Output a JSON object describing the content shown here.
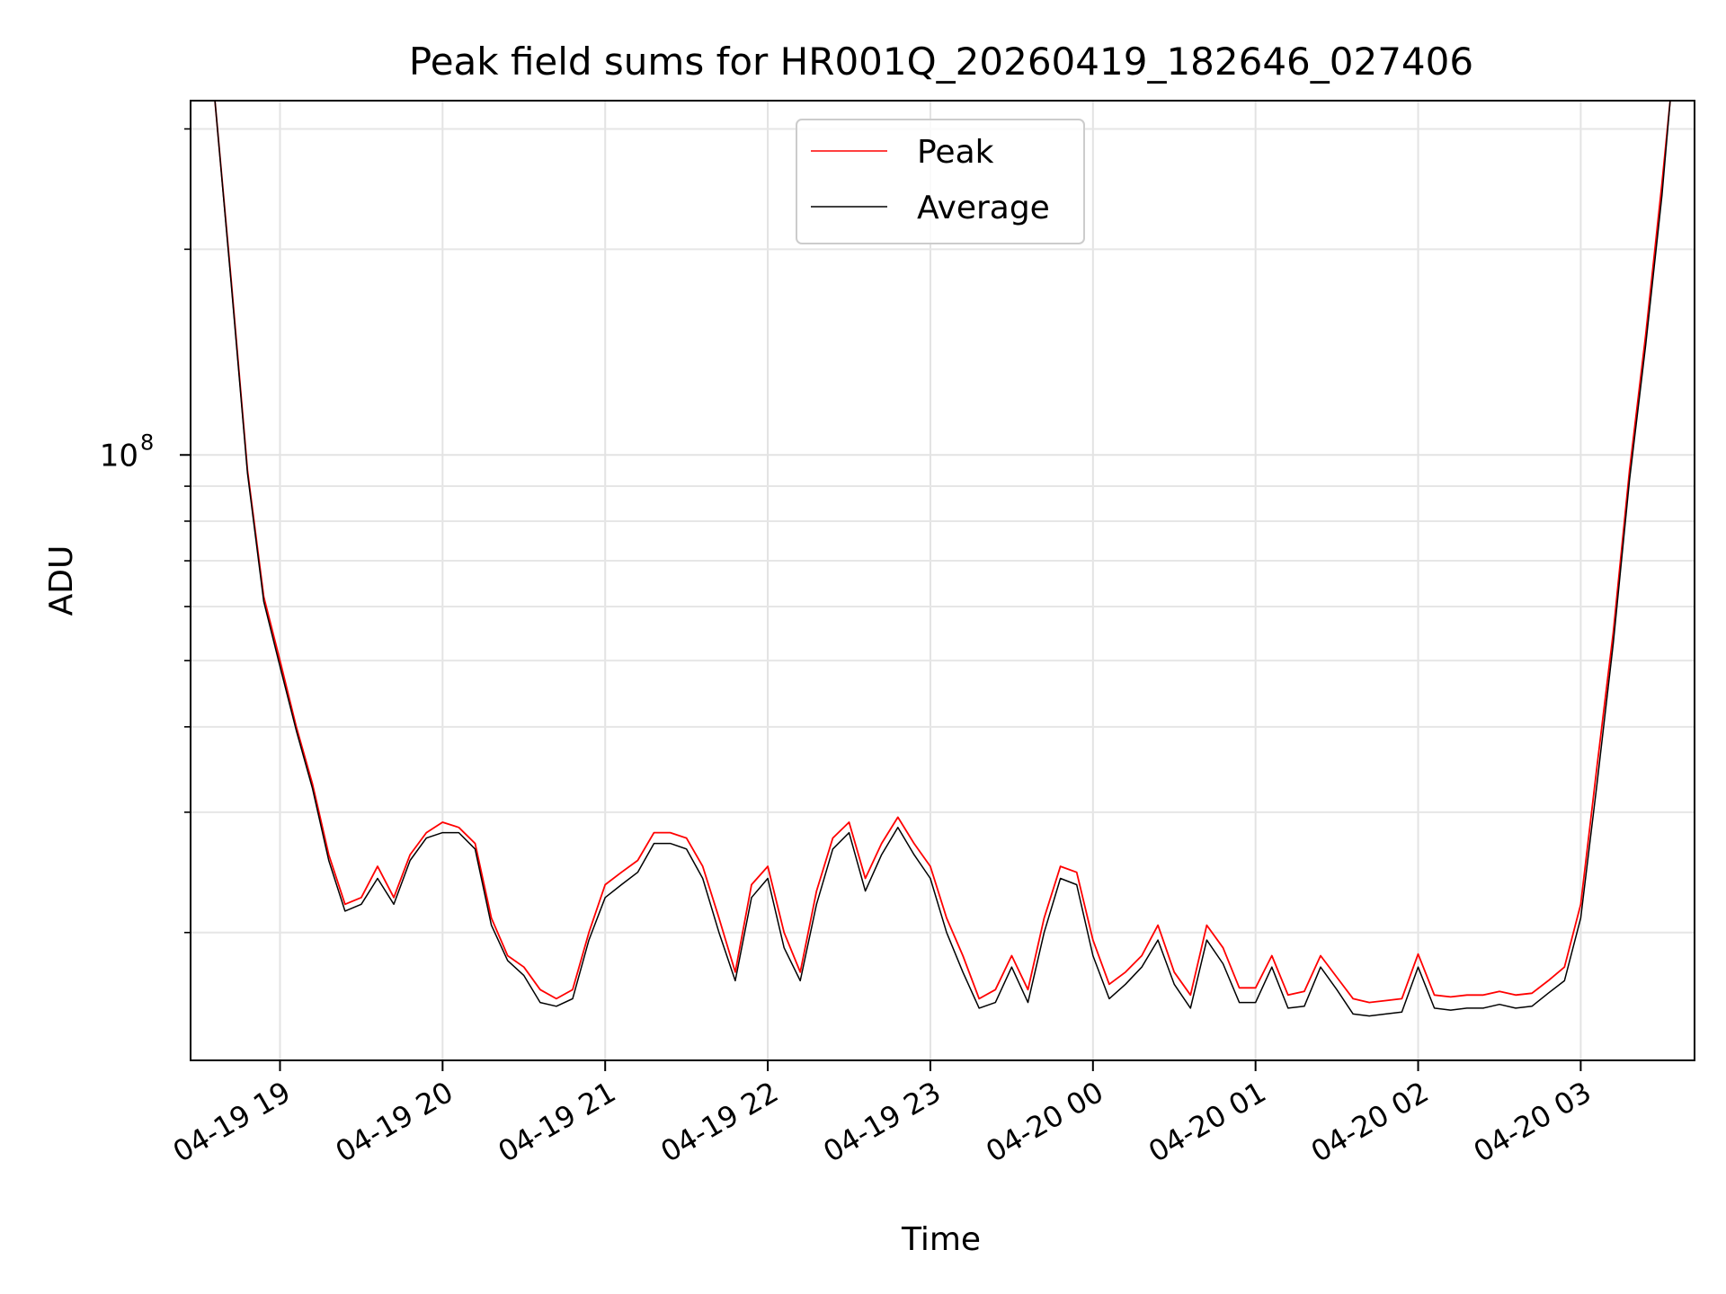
{
  "chart_data": {
    "type": "line",
    "title": "Peak field sums for HR001Q_20260419_182646_027406",
    "xlabel": "Time",
    "ylabel": "ADU",
    "yscale": "log",
    "ylim": [
      13000000,
      330000000
    ],
    "xlim_hours": [
      18.45,
      27.7
    ],
    "x_unit": "hours since 04-19 00:00",
    "grid": true,
    "legend_position": "upper center",
    "y_major_ticks": [
      {
        "value": 100000000,
        "label_base": "10",
        "label_exp": "8"
      }
    ],
    "y_minor_ticks": [
      20000000,
      30000000,
      40000000,
      50000000,
      60000000,
      70000000,
      80000000,
      90000000,
      200000000,
      300000000
    ],
    "x_ticks": [
      {
        "hour": 19,
        "label": "04-19 19"
      },
      {
        "hour": 20,
        "label": "04-19 20"
      },
      {
        "hour": 21,
        "label": "04-19 21"
      },
      {
        "hour": 22,
        "label": "04-19 22"
      },
      {
        "hour": 23,
        "label": "04-19 23"
      },
      {
        "hour": 24,
        "label": "04-20 00"
      },
      {
        "hour": 25,
        "label": "04-20 01"
      },
      {
        "hour": 26,
        "label": "04-20 02"
      },
      {
        "hour": 27,
        "label": "04-20 03"
      }
    ],
    "series": [
      {
        "name": "Peak",
        "color": "#ff0000",
        "x": [
          18.6,
          18.7,
          18.8,
          18.9,
          19.0,
          19.1,
          19.2,
          19.3,
          19.4,
          19.5,
          19.6,
          19.7,
          19.8,
          19.9,
          20.0,
          20.1,
          20.2,
          20.3,
          20.4,
          20.5,
          20.6,
          20.7,
          20.8,
          20.9,
          21.0,
          21.1,
          21.2,
          21.3,
          21.4,
          21.5,
          21.6,
          21.7,
          21.8,
          21.9,
          22.0,
          22.1,
          22.2,
          22.3,
          22.4,
          22.5,
          22.6,
          22.7,
          22.8,
          22.9,
          23.0,
          23.1,
          23.2,
          23.3,
          23.4,
          23.5,
          23.6,
          23.7,
          23.8,
          23.9,
          24.0,
          24.1,
          24.2,
          24.3,
          24.4,
          24.5,
          24.6,
          24.7,
          24.8,
          24.9,
          25.0,
          25.1,
          25.2,
          25.3,
          25.4,
          25.5,
          25.6,
          25.7,
          25.8,
          25.9,
          26.0,
          26.1,
          26.2,
          26.3,
          26.4,
          26.5,
          26.6,
          26.7,
          26.8,
          26.9,
          27.0,
          27.1,
          27.2,
          27.3,
          27.4,
          27.5,
          27.55
        ],
        "values": [
          330000000,
          180000000,
          95000000,
          62000000,
          50000000,
          40000000,
          33000000,
          26000000,
          22000000,
          22500000,
          25000000,
          22500000,
          26000000,
          28000000,
          29000000,
          28500000,
          27000000,
          21000000,
          18500000,
          17800000,
          16500000,
          16000000,
          16500000,
          20000000,
          23500000,
          24500000,
          25500000,
          28000000,
          28000000,
          27500000,
          25000000,
          21000000,
          17500000,
          23500000,
          25000000,
          20000000,
          17500000,
          23000000,
          27500000,
          29000000,
          24000000,
          27000000,
          29500000,
          27000000,
          25000000,
          21000000,
          18500000,
          16000000,
          16500000,
          18500000,
          16500000,
          21000000,
          25000000,
          24500000,
          19500000,
          16800000,
          17500000,
          18500000,
          20500000,
          17500000,
          16200000,
          20500000,
          19000000,
          16600000,
          16600000,
          18500000,
          16200000,
          16400000,
          18500000,
          17200000,
          16000000,
          15800000,
          15900000,
          16000000,
          18600000,
          16200000,
          16100000,
          16200000,
          16200000,
          16400000,
          16200000,
          16300000,
          17000000,
          17800000,
          22000000,
          35000000,
          55000000,
          95000000,
          150000000,
          250000000,
          330000000
        ]
      },
      {
        "name": "Average",
        "color": "#000000",
        "x": [
          18.6,
          18.7,
          18.8,
          18.9,
          19.0,
          19.1,
          19.2,
          19.3,
          19.4,
          19.5,
          19.6,
          19.7,
          19.8,
          19.9,
          20.0,
          20.1,
          20.2,
          20.3,
          20.4,
          20.5,
          20.6,
          20.7,
          20.8,
          20.9,
          21.0,
          21.1,
          21.2,
          21.3,
          21.4,
          21.5,
          21.6,
          21.7,
          21.8,
          21.9,
          22.0,
          22.1,
          22.2,
          22.3,
          22.4,
          22.5,
          22.6,
          22.7,
          22.8,
          22.9,
          23.0,
          23.1,
          23.2,
          23.3,
          23.4,
          23.5,
          23.6,
          23.7,
          23.8,
          23.9,
          24.0,
          24.1,
          24.2,
          24.3,
          24.4,
          24.5,
          24.6,
          24.7,
          24.8,
          24.9,
          25.0,
          25.1,
          25.2,
          25.3,
          25.4,
          25.5,
          25.6,
          25.7,
          25.8,
          25.9,
          26.0,
          26.1,
          26.2,
          26.3,
          26.4,
          26.5,
          26.6,
          26.7,
          26.8,
          26.9,
          27.0,
          27.1,
          27.2,
          27.3,
          27.4,
          27.5,
          27.55
        ],
        "values": [
          330000000,
          178000000,
          94000000,
          61000000,
          49000000,
          39500000,
          32500000,
          25500000,
          21500000,
          22000000,
          24000000,
          22000000,
          25500000,
          27500000,
          28000000,
          28000000,
          26500000,
          20500000,
          18200000,
          17300000,
          15800000,
          15600000,
          16000000,
          19500000,
          22500000,
          23500000,
          24500000,
          27000000,
          27000000,
          26500000,
          24000000,
          20000000,
          17000000,
          22500000,
          24000000,
          19000000,
          17000000,
          22000000,
          26500000,
          28000000,
          23000000,
          26000000,
          28500000,
          26000000,
          24000000,
          20000000,
          17500000,
          15500000,
          15800000,
          17800000,
          15800000,
          20000000,
          24000000,
          23500000,
          18500000,
          16000000,
          16800000,
          17800000,
          19500000,
          16800000,
          15500000,
          19500000,
          18000000,
          15800000,
          15800000,
          17800000,
          15500000,
          15600000,
          17800000,
          16500000,
          15200000,
          15100000,
          15200000,
          15300000,
          17800000,
          15500000,
          15400000,
          15500000,
          15500000,
          15700000,
          15500000,
          15600000,
          16300000,
          17000000,
          21000000,
          33000000,
          53000000,
          92000000,
          145000000,
          240000000,
          330000000
        ]
      }
    ]
  }
}
